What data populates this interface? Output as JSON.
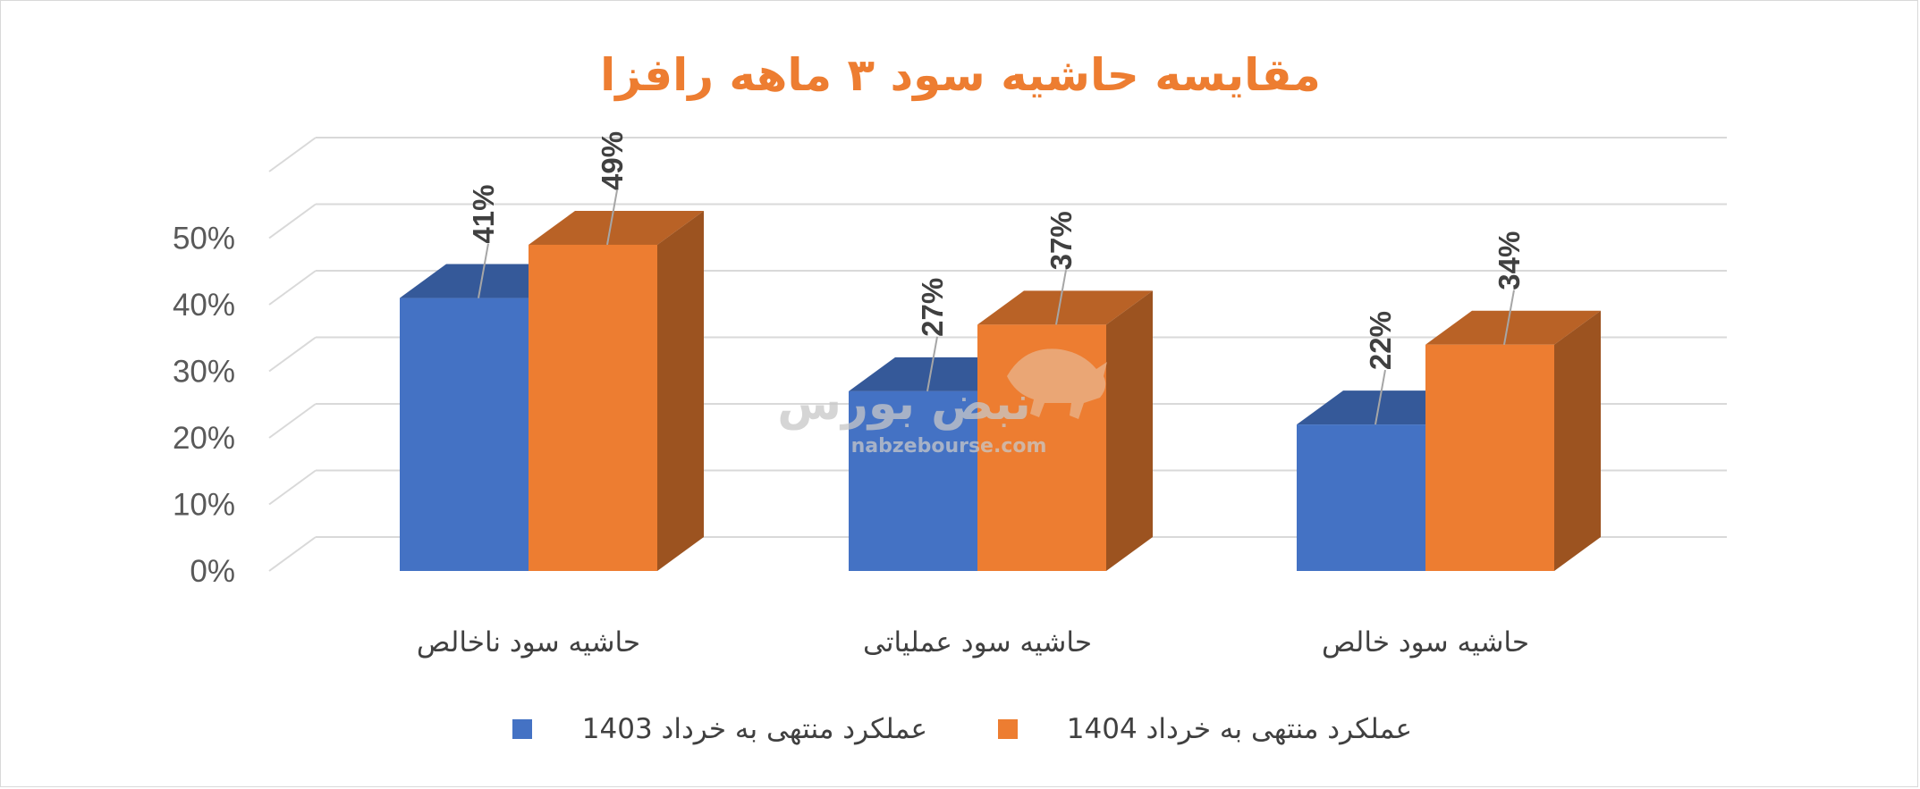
{
  "chart_data": {
    "type": "bar",
    "title": "مقایسه حاشیه سود ۳ ماهه رافزا",
    "categories": [
      "حاشیه سود ناخالص",
      "حاشیه سود عملیاتی",
      "حاشیه سود خالص"
    ],
    "series": [
      {
        "name": "عملکرد منتهی به خرداد 1403",
        "values": [
          41,
          27,
          22
        ],
        "labels": [
          "41%",
          "27%",
          "22%"
        ],
        "color": "#4472c4"
      },
      {
        "name": "عملکرد منتهی به خرداد 1404",
        "values": [
          49,
          37,
          34
        ],
        "labels": [
          "49%",
          "37%",
          "34%"
        ],
        "color": "#ed7d31"
      }
    ],
    "yticks": [
      "0%",
      "10%",
      "20%",
      "30%",
      "40%",
      "50%"
    ],
    "ylim": [
      0,
      60
    ],
    "grid": true,
    "three_d": true,
    "legend_position": "bottom",
    "title_color": "#ed7d31",
    "watermark": {
      "brand": "نبض بورس",
      "url": "nabzebourse.com"
    }
  }
}
